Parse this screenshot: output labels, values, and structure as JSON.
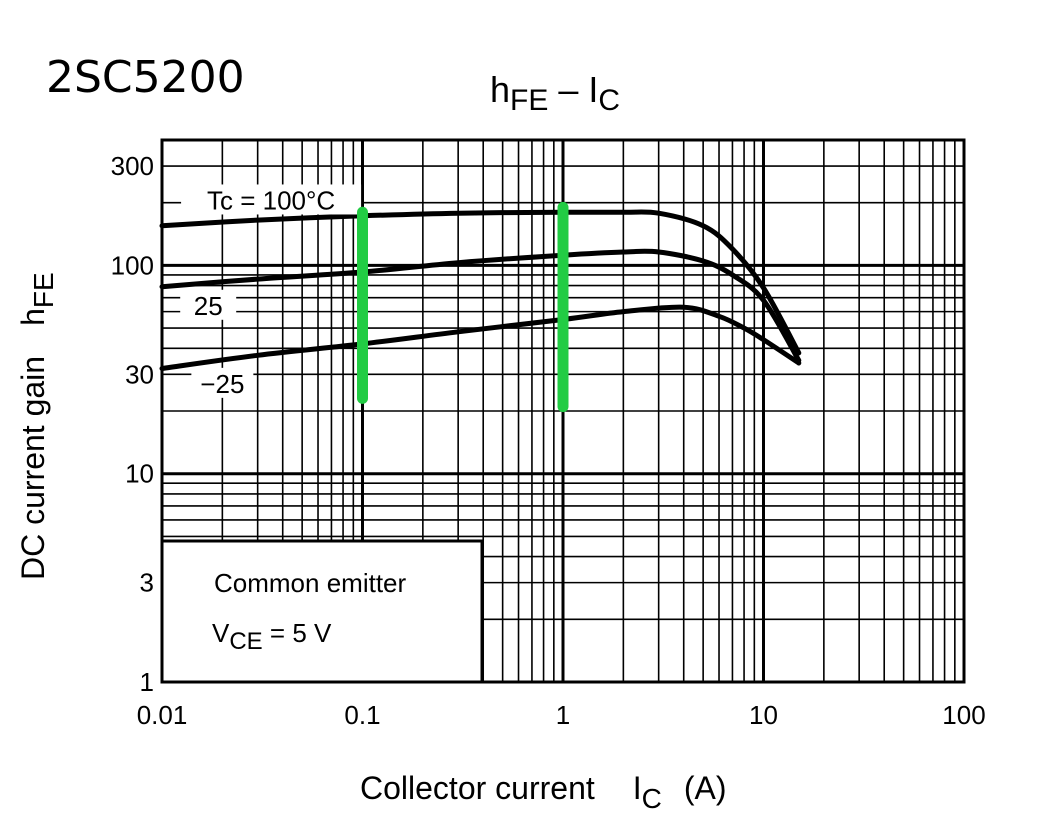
{
  "part_number": "2SC5200",
  "chart_data": {
    "type": "line",
    "title": {
      "main": "h",
      "main_sub": "FE",
      "dash": " – ",
      "var": "I",
      "var_sub": "C"
    },
    "xlabel": {
      "text": "Collector current",
      "var": "I",
      "var_sub": "C",
      "unit": "(A)"
    },
    "ylabel": {
      "text": "DC current gain",
      "var": "h",
      "var_sub": "FE"
    },
    "x_scale": "log",
    "y_scale": "log",
    "xlim": [
      0.01,
      100
    ],
    "ylim": [
      1,
      400
    ],
    "x_ticks": [
      {
        "value": 0.01,
        "label": "0.01"
      },
      {
        "value": 0.1,
        "label": "0.1"
      },
      {
        "value": 1,
        "label": "1"
      },
      {
        "value": 10,
        "label": "10"
      },
      {
        "value": 100,
        "label": "100"
      }
    ],
    "y_ticks": [
      {
        "value": 1,
        "label": "1"
      },
      {
        "value": 3,
        "label": "3"
      },
      {
        "value": 10,
        "label": "10"
      },
      {
        "value": 30,
        "label": "30"
      },
      {
        "value": 100,
        "label": "100"
      },
      {
        "value": 300,
        "label": "300"
      }
    ],
    "grid": true,
    "series": [
      {
        "name": "Tc = 100°C",
        "points": [
          [
            0.01,
            155
          ],
          [
            0.03,
            165
          ],
          [
            0.1,
            173
          ],
          [
            0.3,
            178
          ],
          [
            1,
            180
          ],
          [
            2,
            180
          ],
          [
            3,
            178
          ],
          [
            5,
            155
          ],
          [
            7,
            120
          ],
          [
            10,
            78
          ],
          [
            15,
            38
          ]
        ]
      },
      {
        "name": "25",
        "points": [
          [
            0.01,
            79
          ],
          [
            0.03,
            86
          ],
          [
            0.1,
            93
          ],
          [
            0.3,
            103
          ],
          [
            1,
            112
          ],
          [
            2,
            116
          ],
          [
            3,
            116
          ],
          [
            5,
            105
          ],
          [
            7,
            90
          ],
          [
            10,
            68
          ],
          [
            15,
            35
          ]
        ]
      },
      {
        "name": "−25",
        "points": [
          [
            0.01,
            32
          ],
          [
            0.03,
            37
          ],
          [
            0.1,
            42
          ],
          [
            0.3,
            48
          ],
          [
            1,
            55
          ],
          [
            2,
            60
          ],
          [
            4,
            63
          ],
          [
            6,
            57
          ],
          [
            8,
            50
          ],
          [
            10,
            44
          ],
          [
            15,
            34
          ]
        ]
      }
    ],
    "annotation": {
      "line1": "Common emitter",
      "line2_var": "V",
      "line2_sub": "CE",
      "line2_rest": " = 5 V"
    },
    "highlights": {
      "color": "#22cc44",
      "lines": [
        {
          "x": 0.1,
          "y_range": [
            23,
            180
          ]
        },
        {
          "x": 1,
          "y_range": [
            21,
            190
          ]
        }
      ]
    }
  }
}
